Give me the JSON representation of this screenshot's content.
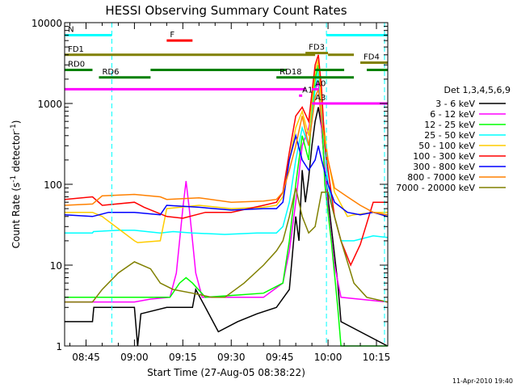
{
  "chart_data": {
    "type": "line",
    "title": "HESSI Observing Summary Count Rates",
    "xlabel": "Start Time (27-Aug-05 08:38:22)",
    "ylabel": "Count Rate (s^-1 detector^-1)",
    "ylabel_main": "Count Rate (s",
    "ylabel_sup1": "-1",
    "ylabel_mid": " detector",
    "ylabel_sup2": "-1",
    "ylabel_end": ")",
    "x_ticks": [
      "08:45",
      "09:00",
      "09:15",
      "09:30",
      "09:45",
      "10:00",
      "10:15"
    ],
    "x_tick_minutes": [
      45,
      60,
      75,
      90,
      105,
      120,
      135
    ],
    "x_range_minutes": [
      38.37,
      138.5
    ],
    "y_scale": "log",
    "y_range": [
      1,
      10000
    ],
    "y_ticks": [
      "10000",
      "1000",
      "100",
      "10",
      "1"
    ],
    "y_tick_values": [
      10000,
      1000,
      100,
      10,
      1
    ],
    "timestamp": "11-Apr-2010 19:40",
    "legend_title": "Det 1,3,4,5,6,9",
    "series": [
      {
        "name": "3 - 6 keV",
        "color": "#000000",
        "points": [
          [
            38.4,
            2
          ],
          [
            47,
            2
          ],
          [
            47.4,
            3
          ],
          [
            60,
            3
          ],
          [
            61,
            1
          ],
          [
            62,
            2.5
          ],
          [
            70,
            3
          ],
          [
            78,
            3
          ],
          [
            79,
            5
          ],
          [
            82,
            3
          ],
          [
            86,
            1.5
          ],
          [
            92,
            2
          ],
          [
            98,
            2.5
          ],
          [
            104,
            3
          ],
          [
            108,
            5
          ],
          [
            110,
            40
          ],
          [
            111,
            20
          ],
          [
            112,
            150
          ],
          [
            113,
            60
          ],
          [
            114,
            120
          ],
          [
            115,
            300
          ],
          [
            116,
            600
          ],
          [
            117,
            900
          ],
          [
            118,
            500
          ],
          [
            119,
            150
          ],
          [
            121,
            30
          ],
          [
            123,
            6
          ],
          [
            124,
            2
          ],
          [
            138.4,
            1
          ]
        ]
      },
      {
        "name": "6 - 12 keV",
        "color": "#ff00ff",
        "points": [
          [
            38.4,
            3.5
          ],
          [
            60,
            3.5
          ],
          [
            65,
            3.8
          ],
          [
            71,
            4
          ],
          [
            73,
            8
          ],
          [
            75,
            50
          ],
          [
            76,
            110
          ],
          [
            77,
            50
          ],
          [
            79,
            8
          ],
          [
            81,
            4
          ],
          [
            100,
            4
          ],
          [
            106,
            6
          ],
          [
            108,
            15
          ],
          [
            110,
            60
          ],
          [
            112,
            300
          ],
          [
            114,
            500
          ],
          [
            116,
            1500
          ],
          [
            117,
            1800
          ],
          [
            118,
            500
          ],
          [
            120,
            50
          ],
          [
            122,
            10
          ],
          [
            124,
            4
          ],
          [
            138.4,
            3.5
          ]
        ]
      },
      {
        "name": "12 - 25 keV",
        "color": "#00ff00",
        "points": [
          [
            38.4,
            4
          ],
          [
            60,
            4
          ],
          [
            71,
            4
          ],
          [
            74,
            6
          ],
          [
            76,
            7
          ],
          [
            78,
            6
          ],
          [
            82,
            4
          ],
          [
            100,
            4.5
          ],
          [
            106,
            6
          ],
          [
            108,
            20
          ],
          [
            110,
            100
          ],
          [
            112,
            400
          ],
          [
            114,
            200
          ],
          [
            115,
            800
          ],
          [
            116,
            2000
          ],
          [
            117,
            3000
          ],
          [
            118,
            800
          ],
          [
            119,
            100
          ],
          [
            121,
            20
          ],
          [
            123,
            3
          ],
          [
            124,
            1
          ],
          [
            138.4,
            1
          ]
        ]
      },
      {
        "name": "25 - 50 keV",
        "color": "#00ffff",
        "points": [
          [
            38.4,
            25
          ],
          [
            47,
            25
          ],
          [
            47.3,
            26
          ],
          [
            55,
            27
          ],
          [
            60,
            27
          ],
          [
            68,
            25
          ],
          [
            72,
            26
          ],
          [
            78,
            25
          ],
          [
            88,
            24
          ],
          [
            98,
            25
          ],
          [
            104,
            25
          ],
          [
            106,
            30
          ],
          [
            108,
            60
          ],
          [
            110,
            200
          ],
          [
            112,
            500
          ],
          [
            114,
            300
          ],
          [
            116,
            1500
          ],
          [
            117,
            2500
          ],
          [
            118,
            800
          ],
          [
            120,
            100
          ],
          [
            122,
            40
          ],
          [
            124,
            20
          ],
          [
            128,
            20
          ],
          [
            134,
            23
          ],
          [
            138.4,
            22
          ]
        ]
      },
      {
        "name": "50 - 100 keV",
        "color": "#ffcc00",
        "points": [
          [
            38.4,
            45
          ],
          [
            47,
            45
          ],
          [
            50,
            40
          ],
          [
            60,
            20
          ],
          [
            61,
            19
          ],
          [
            68,
            20
          ],
          [
            70,
            50
          ],
          [
            80,
            55
          ],
          [
            90,
            50
          ],
          [
            100,
            52
          ],
          [
            104,
            55
          ],
          [
            106,
            70
          ],
          [
            108,
            200
          ],
          [
            110,
            500
          ],
          [
            112,
            800
          ],
          [
            114,
            400
          ],
          [
            116,
            2500
          ],
          [
            117,
            3500
          ],
          [
            118,
            900
          ],
          [
            120,
            200
          ],
          [
            122,
            80
          ],
          [
            126,
            40
          ],
          [
            128,
            42
          ],
          [
            134,
            45
          ],
          [
            138.4,
            45
          ]
        ]
      },
      {
        "name": "100 - 300 keV",
        "color": "#ff0000",
        "points": [
          [
            38.4,
            65
          ],
          [
            47,
            70
          ],
          [
            50,
            55
          ],
          [
            60,
            60
          ],
          [
            63,
            52
          ],
          [
            70,
            40
          ],
          [
            75,
            38
          ],
          [
            82,
            45
          ],
          [
            90,
            45
          ],
          [
            100,
            55
          ],
          [
            104,
            60
          ],
          [
            106,
            80
          ],
          [
            108,
            250
          ],
          [
            110,
            700
          ],
          [
            112,
            900
          ],
          [
            114,
            600
          ],
          [
            116,
            3000
          ],
          [
            117,
            4000
          ],
          [
            118,
            1500
          ],
          [
            119,
            300
          ],
          [
            120,
            150
          ],
          [
            122,
            40
          ],
          [
            124,
            20
          ],
          [
            127,
            10
          ],
          [
            130,
            18
          ],
          [
            134,
            60
          ],
          [
            138.4,
            60
          ]
        ]
      },
      {
        "name": "300 - 800 keV",
        "color": "#0000ff",
        "points": [
          [
            38.4,
            42
          ],
          [
            47,
            40
          ],
          [
            52,
            45
          ],
          [
            60,
            45
          ],
          [
            68,
            42
          ],
          [
            70,
            55
          ],
          [
            80,
            52
          ],
          [
            90,
            48
          ],
          [
            100,
            50
          ],
          [
            104,
            50
          ],
          [
            106,
            60
          ],
          [
            108,
            200
          ],
          [
            110,
            400
          ],
          [
            112,
            200
          ],
          [
            114,
            150
          ],
          [
            116,
            200
          ],
          [
            117,
            300
          ],
          [
            118,
            200
          ],
          [
            120,
            100
          ],
          [
            122,
            60
          ],
          [
            126,
            45
          ],
          [
            130,
            42
          ],
          [
            134,
            45
          ],
          [
            138.4,
            40
          ]
        ]
      },
      {
        "name": "800 - 7000 keV",
        "color": "#ff8000",
        "points": [
          [
            38.4,
            55
          ],
          [
            47,
            57
          ],
          [
            50,
            72
          ],
          [
            60,
            75
          ],
          [
            68,
            70
          ],
          [
            70,
            65
          ],
          [
            80,
            68
          ],
          [
            90,
            60
          ],
          [
            100,
            62
          ],
          [
            104,
            65
          ],
          [
            106,
            80
          ],
          [
            108,
            150
          ],
          [
            110,
            300
          ],
          [
            112,
            700
          ],
          [
            114,
            300
          ],
          [
            116,
            1200
          ],
          [
            117,
            1500
          ],
          [
            118,
            600
          ],
          [
            120,
            200
          ],
          [
            122,
            90
          ],
          [
            126,
            70
          ],
          [
            130,
            55
          ],
          [
            134,
            45
          ],
          [
            138.4,
            42
          ]
        ]
      },
      {
        "name": "7000 - 20000 keV",
        "color": "#808000",
        "points": [
          [
            38.4,
            3.5
          ],
          [
            47,
            3.5
          ],
          [
            50,
            5
          ],
          [
            55,
            8
          ],
          [
            60,
            11
          ],
          [
            65,
            9
          ],
          [
            68,
            6
          ],
          [
            72,
            5
          ],
          [
            78,
            4.5
          ],
          [
            84,
            4
          ],
          [
            88,
            4
          ],
          [
            94,
            6
          ],
          [
            100,
            10
          ],
          [
            104,
            15
          ],
          [
            106,
            20
          ],
          [
            108,
            40
          ],
          [
            110,
            90
          ],
          [
            112,
            40
          ],
          [
            114,
            25
          ],
          [
            116,
            30
          ],
          [
            118,
            80
          ],
          [
            120,
            80
          ],
          [
            122,
            40
          ],
          [
            124,
            20
          ],
          [
            128,
            6
          ],
          [
            132,
            4
          ],
          [
            138.4,
            3.5
          ]
        ]
      }
    ],
    "flag_segments": [
      {
        "label": "N",
        "color": "#00ffff",
        "y": 7000,
        "segs": [
          [
            38.4,
            53
          ]
        ]
      },
      {
        "label": "",
        "color": "#00ffff",
        "y": 7000,
        "segs": [
          [
            119.5,
            138.4
          ]
        ]
      },
      {
        "label": "F",
        "color": "#ff0000",
        "y": 6000,
        "segs": [
          [
            70,
            78
          ]
        ]
      },
      {
        "label": "FD1",
        "color": "#808000",
        "y": 4000,
        "segs": [
          [
            38.4,
            116
          ],
          [
            120,
            128
          ]
        ]
      },
      {
        "label": "FD3",
        "color": "#808000",
        "y": 4200,
        "segs": [
          [
            113,
            120
          ]
        ]
      },
      {
        "label": "FD4",
        "color": "#808000",
        "y": 3200,
        "segs": [
          [
            130,
            138.4
          ]
        ]
      },
      {
        "label": "RD0",
        "color": "#008000",
        "y": 2600,
        "segs": [
          [
            38.4,
            47
          ],
          [
            65,
            107
          ],
          [
            116,
            125
          ],
          [
            132,
            138.4
          ]
        ]
      },
      {
        "label": "RD6",
        "color": "#008000",
        "y": 2100,
        "segs": [
          [
            49,
            65
          ]
        ]
      },
      {
        "label": "RD18",
        "color": "#008000",
        "y": 2100,
        "segs": [
          [
            104,
            128
          ]
        ]
      },
      {
        "label": "",
        "color": "#ff00ff",
        "y": 1500,
        "segs": [
          [
            38.4,
            113
          ]
        ]
      },
      {
        "label": "A1",
        "color": "#ff00ff",
        "y": 1250,
        "segs": [
          [
            111,
            112
          ]
        ]
      },
      {
        "label": "A0",
        "color": "#ff00ff",
        "y": 1500,
        "segs": [
          [
            115,
            117
          ]
        ]
      },
      {
        "label": "A3",
        "color": "#ff00ff",
        "y": 1000,
        "segs": [
          [
            115,
            138.4
          ]
        ]
      }
    ],
    "vlines": [
      {
        "x": 53,
        "color": "#00ffff"
      },
      {
        "x": 119.5,
        "color": "#00ffff"
      },
      {
        "x": 137.5,
        "color": "#00ffff"
      }
    ]
  }
}
